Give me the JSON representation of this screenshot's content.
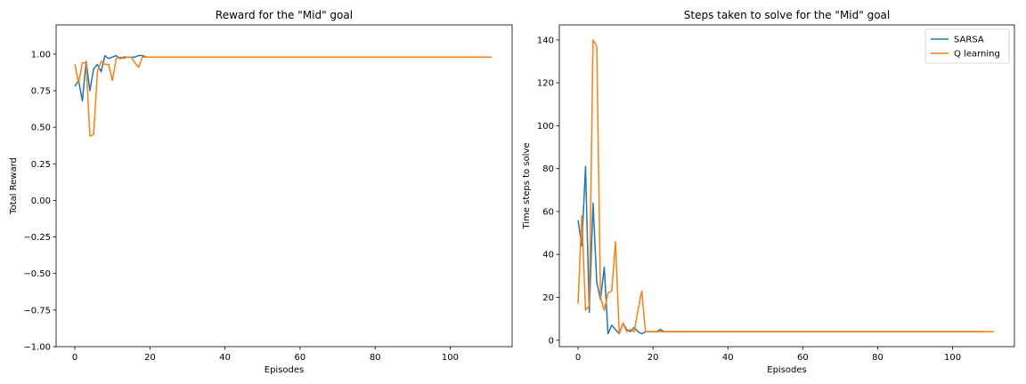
{
  "colors": {
    "sarsa": "#1f77b4",
    "qlearning": "#ff7f0e",
    "axes": "#000000",
    "background": "#ffffff"
  },
  "chart_data": [
    {
      "type": "line",
      "title": "Reward for the \"Mid\" goal",
      "xlabel": "Episodes",
      "ylabel": "Total Reward",
      "xlim": [
        -5,
        116.5
      ],
      "ylim": [
        -1.0,
        1.2
      ],
      "xticks": [
        0,
        20,
        40,
        60,
        80,
        100
      ],
      "yticks": [
        -1.0,
        -0.75,
        -0.5,
        -0.25,
        0.0,
        0.25,
        0.5,
        0.75,
        1.0
      ],
      "xtick_labels": [
        "0",
        "20",
        "40",
        "60",
        "80",
        "100"
      ],
      "ytick_labels": [
        "−1.00",
        "−0.75",
        "−0.50",
        "−0.25",
        "0.00",
        "0.25",
        "0.50",
        "0.75",
        "1.00"
      ],
      "grid": false,
      "legend": null,
      "series": [
        {
          "color": "#1f77b4",
          "x": [
            0,
            1,
            2,
            3,
            4,
            5,
            6,
            7,
            8,
            9,
            10,
            11,
            12,
            13,
            14,
            15,
            16,
            17,
            18,
            19,
            20,
            21,
            22,
            23,
            30,
            40,
            50,
            60,
            70,
            80,
            90,
            100,
            108
          ],
          "y": [
            0.78,
            0.82,
            0.68,
            0.95,
            0.75,
            0.9,
            0.93,
            0.88,
            0.99,
            0.97,
            0.98,
            0.99,
            0.97,
            0.98,
            0.98,
            0.98,
            0.98,
            0.99,
            0.99,
            0.98,
            0.98,
            0.98,
            0.98,
            0.98,
            0.98,
            0.98,
            0.98,
            0.98,
            0.98,
            0.98,
            0.98,
            0.98,
            0.98
          ]
        },
        {
          "color": "#ff7f0e",
          "x": [
            0,
            1,
            2,
            3,
            4,
            5,
            6,
            7,
            8,
            9,
            10,
            11,
            12,
            13,
            14,
            15,
            16,
            17,
            18,
            19,
            20,
            21,
            22,
            23,
            30,
            40,
            50,
            60,
            70,
            80,
            90,
            100,
            111
          ],
          "y": [
            0.93,
            0.8,
            0.94,
            0.94,
            0.44,
            0.45,
            0.88,
            0.95,
            0.93,
            0.93,
            0.82,
            0.97,
            0.98,
            0.97,
            0.98,
            0.98,
            0.94,
            0.91,
            0.98,
            0.98,
            0.98,
            0.98,
            0.98,
            0.98,
            0.98,
            0.98,
            0.98,
            0.98,
            0.98,
            0.98,
            0.98,
            0.98,
            0.98
          ]
        }
      ]
    },
    {
      "type": "line",
      "title": "Steps taken to solve for the \"Mid\" goal",
      "xlabel": "Episodes",
      "ylabel": "Time steps to solve",
      "xlim": [
        -5,
        116.5
      ],
      "ylim": [
        -3,
        147
      ],
      "xticks": [
        0,
        20,
        40,
        60,
        80,
        100
      ],
      "yticks": [
        0,
        20,
        40,
        60,
        80,
        100,
        120,
        140
      ],
      "xtick_labels": [
        "0",
        "20",
        "40",
        "60",
        "80",
        "100"
      ],
      "ytick_labels": [
        "0",
        "20",
        "40",
        "60",
        "80",
        "100",
        "120",
        "140"
      ],
      "grid": false,
      "legend": "top-right",
      "series": [
        {
          "name": "SARSA",
          "color": "#1f77b4",
          "x": [
            0,
            1,
            2,
            3,
            4,
            5,
            6,
            7,
            8,
            9,
            10,
            11,
            12,
            13,
            14,
            15,
            16,
            17,
            18,
            19,
            20,
            21,
            22,
            23,
            30,
            40,
            50,
            60,
            70,
            80,
            90,
            100,
            108
          ],
          "y": [
            56,
            44,
            81,
            13,
            64,
            27,
            19,
            34,
            3,
            7,
            5,
            3,
            8,
            5,
            4,
            6,
            4,
            3,
            4,
            4,
            4,
            4,
            5,
            4,
            4,
            4,
            4,
            4,
            4,
            4,
            4,
            4,
            4
          ]
        },
        {
          "name": "Q learning",
          "color": "#ff7f0e",
          "x": [
            0,
            1,
            2,
            3,
            4,
            5,
            6,
            7,
            8,
            9,
            10,
            11,
            12,
            13,
            14,
            15,
            16,
            17,
            18,
            19,
            20,
            21,
            22,
            23,
            30,
            40,
            50,
            60,
            70,
            80,
            90,
            100,
            111
          ],
          "y": [
            17,
            58,
            14,
            16,
            140,
            137,
            20,
            14,
            22,
            23,
            46,
            3,
            8,
            4,
            5,
            4,
            14,
            23,
            4,
            4,
            4,
            4,
            4,
            4,
            4,
            4,
            4,
            4,
            4,
            4,
            4,
            4,
            4
          ]
        }
      ]
    }
  ]
}
